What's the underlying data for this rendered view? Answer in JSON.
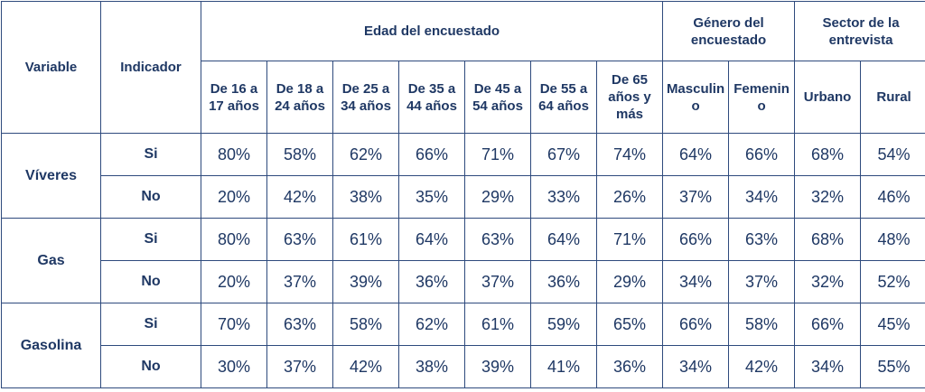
{
  "headers": {
    "variable": "Variable",
    "indicador": "Indicador",
    "group_edad": "Edad del encuestado",
    "group_genero": "Género del encuestado",
    "group_sector": "Sector de la entrevista",
    "columns": [
      "De 16 a 17 años",
      "De 18 a 24 años",
      "De 25 a 34 años",
      "De 35 a 44 años",
      "De 45 a 54 años",
      "De 55 a 64 años",
      "De 65 años y más",
      "Masculino",
      "Femenino",
      "Urbano",
      "Rural"
    ]
  },
  "rows": [
    {
      "variable": "Víveres",
      "indicator": "Si",
      "values": [
        "80%",
        "58%",
        "62%",
        "66%",
        "71%",
        "67%",
        "74%",
        "64%",
        "66%",
        "68%",
        "54%"
      ]
    },
    {
      "variable": "Víveres",
      "indicator": "No",
      "values": [
        "20%",
        "42%",
        "38%",
        "35%",
        "29%",
        "33%",
        "26%",
        "37%",
        "34%",
        "32%",
        "46%"
      ]
    },
    {
      "variable": "Gas",
      "indicator": "Si",
      "values": [
        "80%",
        "63%",
        "61%",
        "64%",
        "63%",
        "64%",
        "71%",
        "66%",
        "63%",
        "68%",
        "48%"
      ]
    },
    {
      "variable": "Gas",
      "indicator": "No",
      "values": [
        "20%",
        "37%",
        "39%",
        "36%",
        "37%",
        "36%",
        "29%",
        "34%",
        "37%",
        "32%",
        "52%"
      ]
    },
    {
      "variable": "Gasolina",
      "indicator": "Si",
      "values": [
        "70%",
        "63%",
        "58%",
        "62%",
        "61%",
        "59%",
        "65%",
        "66%",
        "58%",
        "66%",
        "45%"
      ]
    },
    {
      "variable": "Gasolina",
      "indicator": "No",
      "values": [
        "30%",
        "37%",
        "42%",
        "38%",
        "39%",
        "41%",
        "36%",
        "34%",
        "42%",
        "34%",
        "55%"
      ]
    }
  ],
  "colors": {
    "text": "#1f3864",
    "border": "#2e4a7d"
  }
}
